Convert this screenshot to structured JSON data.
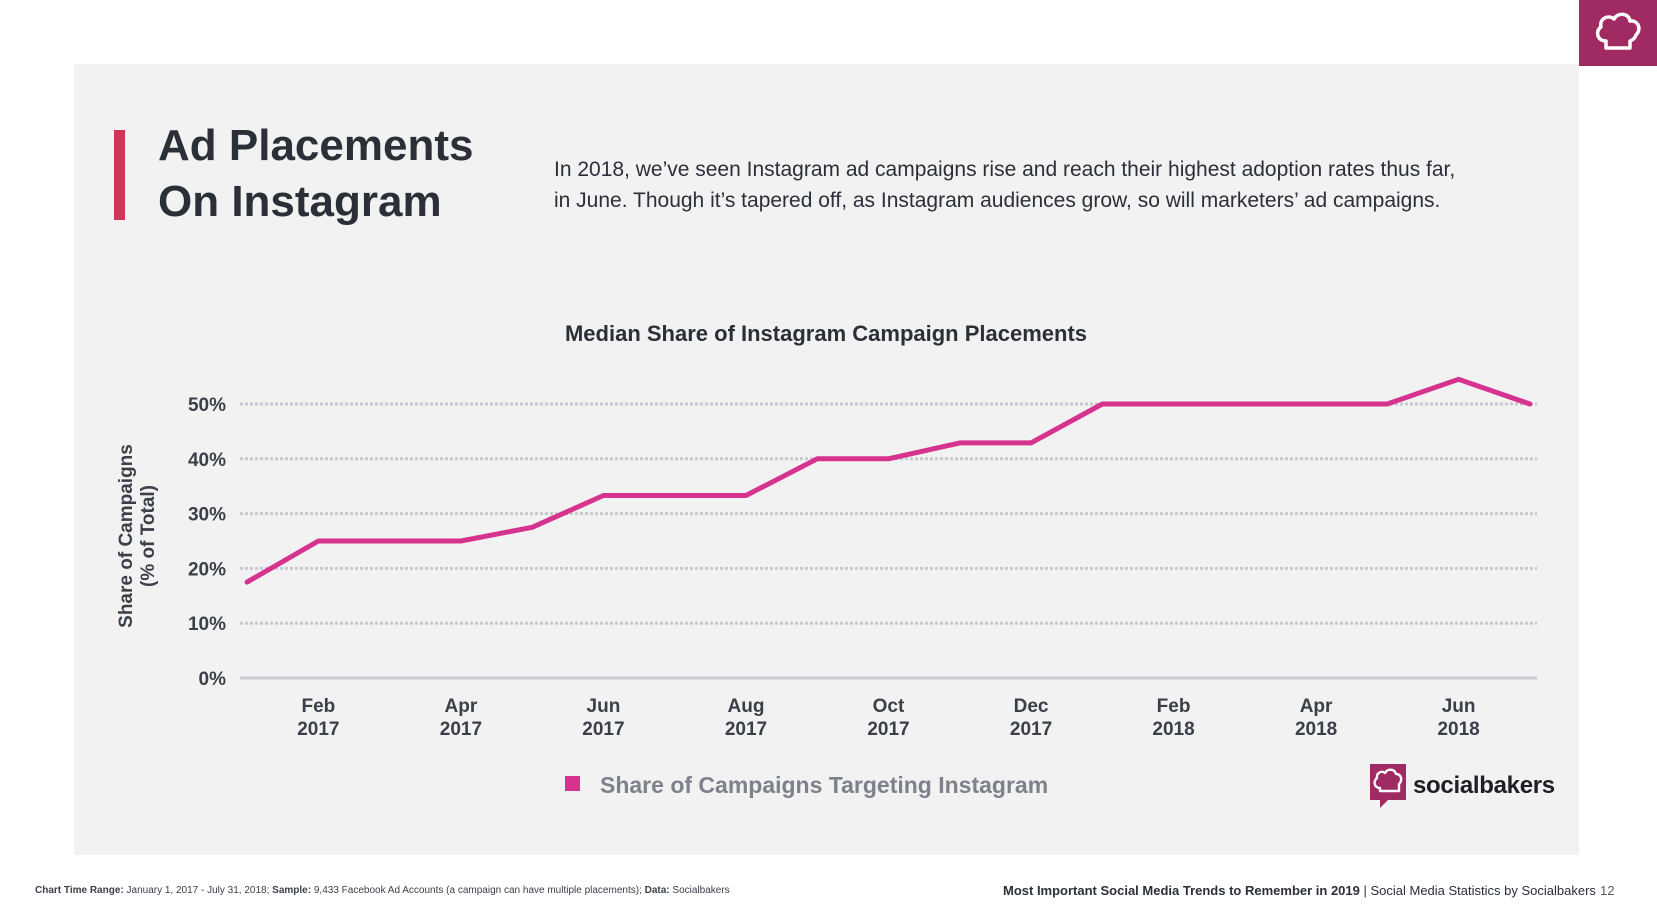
{
  "slide": {
    "title_lines": [
      "Ad Placements",
      "On Instagram"
    ],
    "intro_lines": [
      "In 2018, we’ve seen Instagram ad campaigns rise and reach their highest adoption rates thus far,",
      "in June. Though it’s tapered off, as Instagram audiences grow, so will marketers’ ad campaigns."
    ],
    "page_number": "12"
  },
  "brand": {
    "name": "socialbakers",
    "icon": "chef-hat-icon",
    "colors": {
      "corner": "#a02a62",
      "accent_bar": "#d0365a",
      "line": "#d6338f"
    }
  },
  "footer": {
    "left_bold_1": "Chart Time Range:",
    "left_text_1": " January 1, 2017 - July 31, 2018; ",
    "left_bold_2": "Sample:",
    "left_text_2": " 9,433 Facebook Ad Accounts (a campaign can have multiple placements); ",
    "left_bold_3": "Data:",
    "left_text_3": " Socialbakers",
    "right_bold": "Most Important Social Media Trends to Remember in 2019",
    "right_text": " | Social Media Statistics by Socialbakers"
  },
  "chart_data": {
    "type": "line",
    "title": "Median Share of Instagram Campaign Placements",
    "ylabel_lines": [
      "Share of Campaigns",
      "(% of Total)"
    ],
    "xlabel": "",
    "ylim": [
      0,
      50
    ],
    "yticks": [
      0,
      10,
      20,
      30,
      40,
      50
    ],
    "ytick_labels": [
      "0%",
      "10%",
      "20%",
      "30%",
      "40%",
      "50%"
    ],
    "grid": true,
    "legend_position": "bottom",
    "x_ticks": [
      {
        "label_1": "Feb",
        "label_2": "2017",
        "x": 1
      },
      {
        "label_1": "Apr",
        "label_2": "2017",
        "x": 3
      },
      {
        "label_1": "Jun",
        "label_2": "2017",
        "x": 5
      },
      {
        "label_1": "Aug",
        "label_2": "2017",
        "x": 7
      },
      {
        "label_1": "Oct",
        "label_2": "2017",
        "x": 9
      },
      {
        "label_1": "Dec",
        "label_2": "2017",
        "x": 11
      },
      {
        "label_1": "Feb",
        "label_2": "2018",
        "x": 13
      },
      {
        "label_1": "Apr",
        "label_2": "2018",
        "x": 15
      },
      {
        "label_1": "Jun",
        "label_2": "2018",
        "x": 17
      }
    ],
    "x_range": [
      -0.1,
      18.1
    ],
    "series": [
      {
        "name": "Share of Campaigns Targeting Instagram",
        "color": "#d6338f",
        "x": [
          0,
          1,
          2,
          3,
          4,
          5,
          6,
          7,
          8,
          9,
          10,
          11,
          12,
          13,
          14,
          15,
          16,
          17,
          18
        ],
        "values": [
          17.5,
          25,
          25,
          25,
          27.5,
          33.3,
          33.3,
          33.3,
          40,
          40,
          42.9,
          42.9,
          50,
          50,
          50,
          50,
          50,
          54.5,
          50
        ]
      }
    ]
  }
}
